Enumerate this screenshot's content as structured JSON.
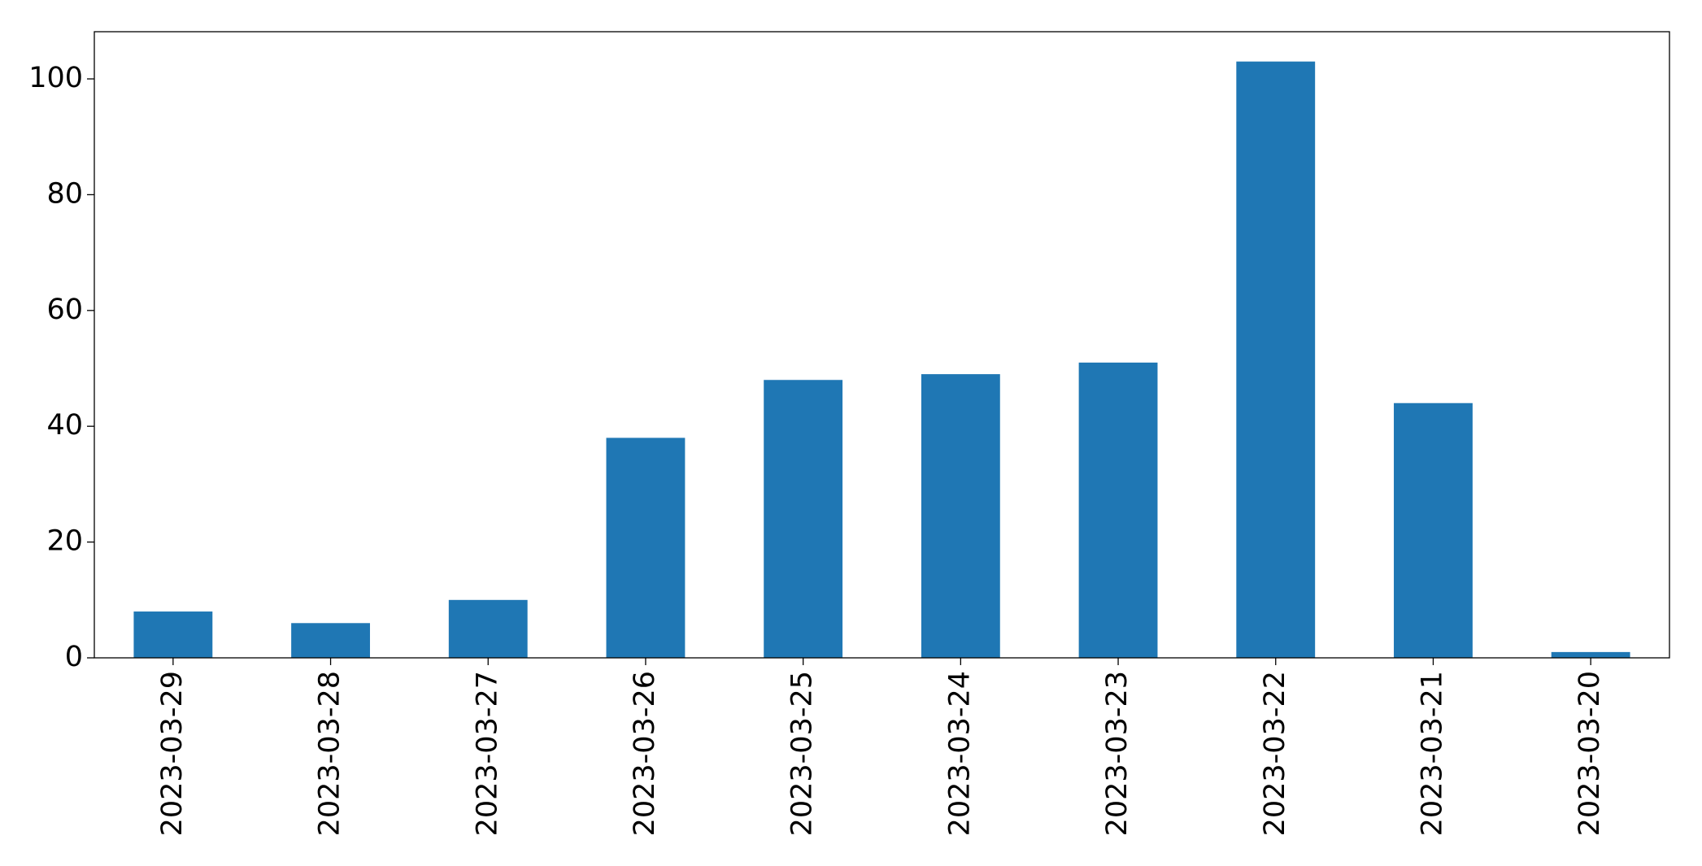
{
  "chart_data": {
    "type": "bar",
    "categories": [
      "2023-03-29",
      "2023-03-28",
      "2023-03-27",
      "2023-03-26",
      "2023-03-25",
      "2023-03-24",
      "2023-03-23",
      "2023-03-22",
      "2023-03-21",
      "2023-03-20"
    ],
    "values": [
      8,
      6,
      10,
      38,
      48,
      49,
      51,
      103,
      44,
      1
    ],
    "color": "#1f77b4",
    "ylim": [
      0,
      108.15
    ],
    "yticks": [
      0,
      20,
      40,
      60,
      80,
      100
    ],
    "grid": false
  }
}
